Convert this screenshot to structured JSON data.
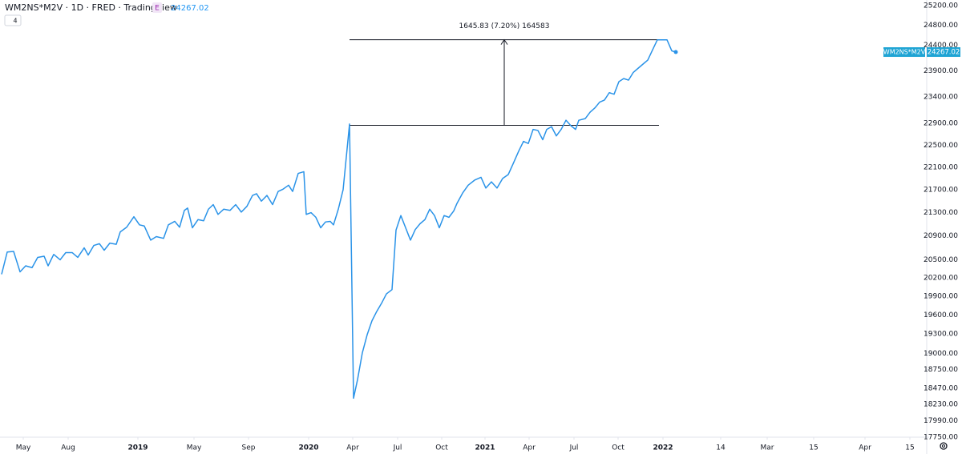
{
  "chart_data": {
    "type": "line",
    "title": "WM2NS*M2V · 1D · FRED · TradingView",
    "badge": "E",
    "indicator_count": "4",
    "log_scale": true,
    "grid": false,
    "x": [
      0.5,
      2.25,
      4.25,
      6.25,
      8,
      10,
      11.75,
      13.75,
      15,
      16.75,
      18.75,
      20.5,
      22.5,
      24.25,
      26.25,
      27.5,
      29.25,
      31,
      32.5,
      34.25,
      36.25,
      37.5,
      39.5,
      41.75,
      43.5,
      45,
      47,
      48.75,
      51,
      52.5,
      54.5,
      56,
      57.5,
      58.5,
      60,
      61.75,
      63.5,
      65,
      66.5,
      68,
      69.75,
      71.75,
      73.5,
      75.25,
      77,
      78.75,
      80,
      81.5,
      83.25,
      85,
      86.75,
      88.25,
      90,
      91.25,
      93,
      94.75,
      95.5,
      97,
      98.5,
      100,
      101.5,
      103,
      104,
      105.5,
      107,
      109,
      110.25,
      111.5,
      113,
      114.5,
      116,
      117.5,
      119,
      120.5,
      122.25,
      123.5,
      125,
      126.5,
      128,
      129.5,
      131,
      132.5,
      134,
      135.5,
      137,
      138.5,
      140,
      141.5,
      142.5,
      144.25,
      146,
      148,
      150,
      151.5,
      153.25,
      155,
      156.75,
      158.5,
      160,
      161.75,
      163.25,
      164.75,
      166.25,
      167.75,
      169.25,
      170.5,
      172,
      173.5,
      175,
      176.5,
      178,
      179.5,
      180.5,
      182.5,
      184,
      185.5,
      187,
      188.5,
      190,
      191.5,
      193,
      194.5,
      196,
      197.5,
      199,
      200.5,
      202,
      203.5,
      205,
      206.5,
      208,
      209.5,
      210.75
    ],
    "series": [
      {
        "name": "WM2NS*M2V",
        "color": "#2a93e8",
        "values": [
          20260,
          20630,
          20640,
          20300,
          20400,
          20370,
          20540,
          20560,
          20400,
          20590,
          20500,
          20620,
          20620,
          20540,
          20700,
          20580,
          20740,
          20770,
          20660,
          20780,
          20760,
          20970,
          21050,
          21230,
          21090,
          21070,
          20830,
          20890,
          20860,
          21090,
          21150,
          21050,
          21340,
          21380,
          21040,
          21180,
          21160,
          21360,
          21440,
          21270,
          21360,
          21340,
          21440,
          21310,
          21410,
          21600,
          21630,
          21500,
          21600,
          21440,
          21670,
          21710,
          21780,
          21670,
          21990,
          22020,
          21270,
          21300,
          21220,
          21040,
          21140,
          21150,
          21090,
          21360,
          21700,
          22890,
          18320,
          18600,
          19010,
          19290,
          19510,
          19660,
          19790,
          19940,
          20010,
          21000,
          21250,
          21040,
          20830,
          21010,
          21110,
          21180,
          21360,
          21250,
          21040,
          21250,
          21220,
          21330,
          21460,
          21640,
          21780,
          21870,
          21920,
          21730,
          21840,
          21730,
          21900,
          21970,
          22160,
          22390,
          22570,
          22530,
          22790,
          22770,
          22600,
          22790,
          22840,
          22670,
          22790,
          22960,
          22860,
          22790,
          22960,
          22990,
          23110,
          23190,
          23300,
          23340,
          23480,
          23450,
          23690,
          23750,
          23720,
          23870,
          23950,
          24030,
          24110,
          24310,
          24510,
          24510,
          24510,
          24290,
          24267.02
        ]
      }
    ],
    "price_label_color": "#1fa4d4",
    "xlim": [
      0,
      289
    ],
    "xticks": [
      {
        "value": 7.25,
        "label": "May"
      },
      {
        "value": 21.25,
        "label": "Aug"
      },
      {
        "value": 43,
        "label": "2019"
      },
      {
        "value": 60.5,
        "label": "May"
      },
      {
        "value": 77.5,
        "label": "Sep"
      },
      {
        "value": 96.25,
        "label": "2020"
      },
      {
        "value": 110,
        "label": "Apr"
      },
      {
        "value": 124,
        "label": "Jul"
      },
      {
        "value": 137.75,
        "label": "Oct"
      },
      {
        "value": 151.25,
        "label": "2021"
      },
      {
        "value": 165,
        "label": "Apr"
      },
      {
        "value": 179,
        "label": "Jul"
      },
      {
        "value": 192.75,
        "label": "Oct"
      },
      {
        "value": 206.75,
        "label": "2022"
      },
      {
        "value": 224.75,
        "label": "14"
      },
      {
        "value": 239.25,
        "label": "Mar"
      },
      {
        "value": 253.75,
        "label": "15"
      },
      {
        "value": 269.75,
        "label": "Apr"
      },
      {
        "value": 283.75,
        "label": "15"
      }
    ],
    "ylim": [
      17750,
      25200
    ],
    "yticks": [
      {
        "value": 25200,
        "label": "25200.00"
      },
      {
        "value": 24800,
        "label": "24800.00"
      },
      {
        "value": 24400,
        "label": "24400.00"
      },
      {
        "value": 23900,
        "label": "23900.00"
      },
      {
        "value": 23400,
        "label": "23400.00"
      },
      {
        "value": 22900,
        "label": "22900.00"
      },
      {
        "value": 22500,
        "label": "22500.00"
      },
      {
        "value": 22100,
        "label": "22100.00"
      },
      {
        "value": 21700,
        "label": "21700.00"
      },
      {
        "value": 21300,
        "label": "21300.00"
      },
      {
        "value": 20900,
        "label": "20900.00"
      },
      {
        "value": 20500,
        "label": "20500.00"
      },
      {
        "value": 20200,
        "label": "20200.00"
      },
      {
        "value": 19900,
        "label": "19900.00"
      },
      {
        "value": 19600,
        "label": "19600.00"
      },
      {
        "value": 19300,
        "label": "19300.00"
      },
      {
        "value": 19000,
        "label": "19000.00"
      },
      {
        "value": 18750,
        "label": "18750.00"
      },
      {
        "value": 18470,
        "label": "18470.00"
      },
      {
        "value": 18230,
        "label": "18230.00"
      },
      {
        "value": 17990,
        "label": "17990.00"
      },
      {
        "value": 17750,
        "label": "17750.00"
      }
    ],
    "annotation": {
      "label": "1645.83 (7.20%) 164583",
      "from": 22865,
      "to": 24511,
      "x_start": 109,
      "x_end": 205.5,
      "arrow_x": 157.25
    }
  }
}
